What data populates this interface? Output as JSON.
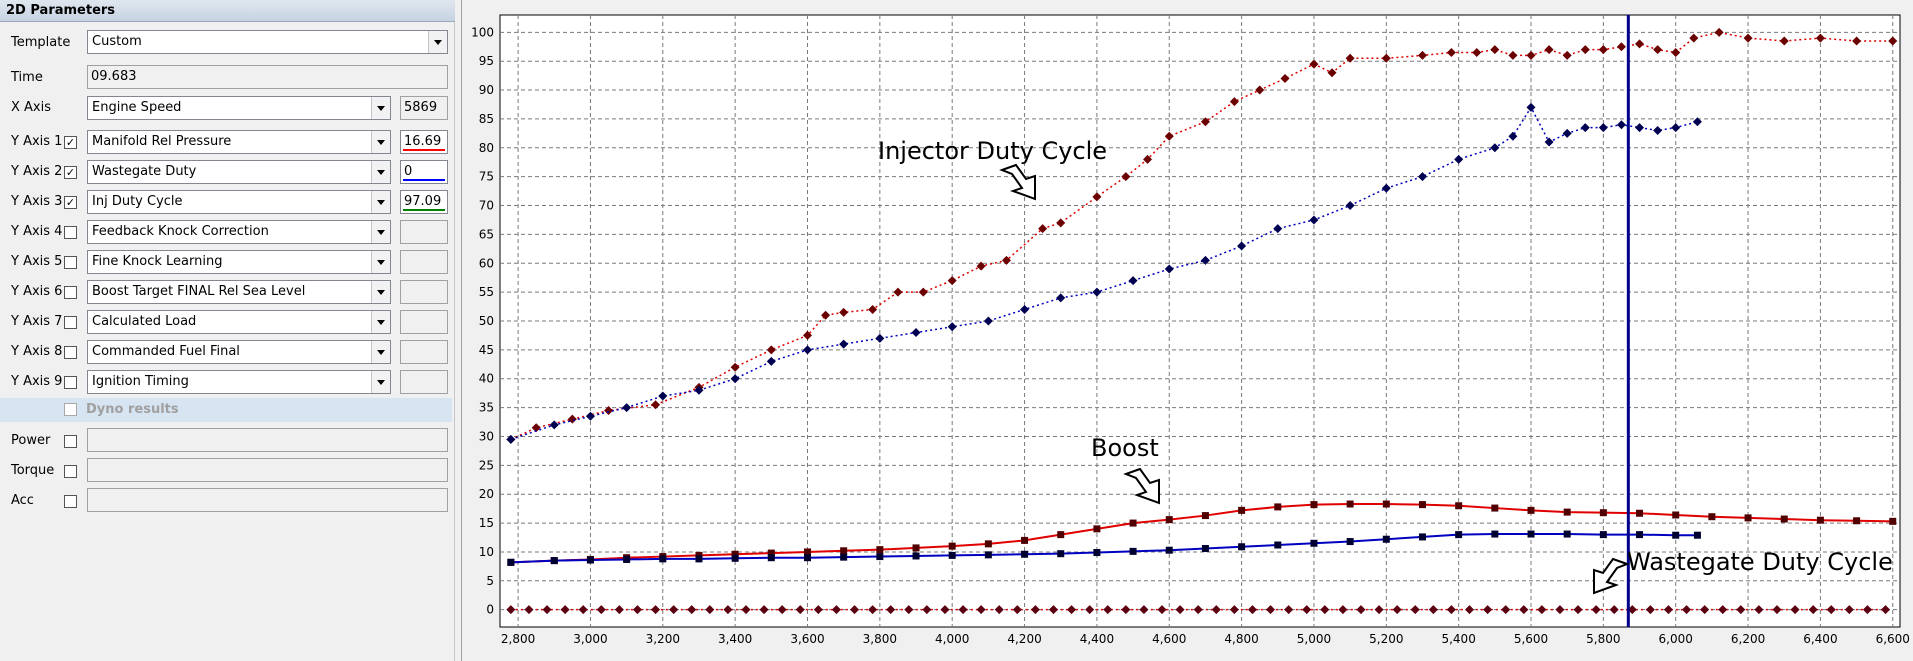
{
  "panel": {
    "title": "2D Parameters",
    "template": {
      "label": "Template",
      "value": "Custom"
    },
    "time": {
      "label": "Time",
      "value": "09.683"
    },
    "x_axis": {
      "label": "X Axis",
      "value": "Engine Speed",
      "reading": "5869"
    },
    "y_axes": [
      {
        "label": "Y Axis 1",
        "checked": true,
        "value": "Manifold Rel Pressure",
        "reading": "16.69",
        "color": "#ff0000"
      },
      {
        "label": "Y Axis 2",
        "checked": true,
        "value": "Wastegate Duty",
        "reading": "0",
        "color": "#0000ff"
      },
      {
        "label": "Y Axis 3",
        "checked": true,
        "value": "Inj Duty Cycle",
        "reading": "97.09",
        "color": "#008000"
      },
      {
        "label": "Y Axis 4",
        "checked": false,
        "value": "Feedback Knock Correction",
        "reading": ""
      },
      {
        "label": "Y Axis 5",
        "checked": false,
        "value": "Fine Knock Learning",
        "reading": ""
      },
      {
        "label": "Y Axis 6",
        "checked": false,
        "value": "Boost Target FINAL Rel Sea Level",
        "reading": ""
      },
      {
        "label": "Y Axis 7",
        "checked": false,
        "value": "Calculated Load",
        "reading": ""
      },
      {
        "label": "Y Axis 8",
        "checked": false,
        "value": "Commanded Fuel Final",
        "reading": ""
      },
      {
        "label": "Y Axis 9",
        "checked": false,
        "value": "Ignition Timing",
        "reading": ""
      }
    ],
    "dyno": {
      "label": "Dyno results",
      "checked": false
    },
    "power": {
      "label": "Power",
      "checked": false
    },
    "torque": {
      "label": "Torque",
      "checked": false
    },
    "acc": {
      "label": "Acc",
      "checked": false
    }
  },
  "chart_data": {
    "type": "line",
    "xlim": [
      2750,
      6620
    ],
    "ylim": [
      -3,
      103
    ],
    "x_ticks": [
      "2,800",
      "3,000",
      "3,200",
      "3,400",
      "3,600",
      "3,800",
      "4,000",
      "4,200",
      "4,400",
      "4,600",
      "4,800",
      "5,000",
      "5,200",
      "5,400",
      "5,600",
      "5,800",
      "6,000",
      "6,200",
      "6,400",
      "6,600"
    ],
    "y_ticks": [
      "0",
      "5",
      "10",
      "15",
      "20",
      "25",
      "30",
      "35",
      "40",
      "45",
      "50",
      "55",
      "60",
      "65",
      "70",
      "75",
      "80",
      "85",
      "90",
      "95",
      "100"
    ],
    "grid": true,
    "cursor_x": 5869,
    "annotations": [
      "Injector Duty Cycle",
      "Boost",
      "Wastegate Duty Cycle"
    ],
    "series": [
      {
        "color": "#e00000",
        "marker_color": "#6b0000",
        "style": "dotted",
        "marker": "diamond",
        "x": [
          2780,
          2850,
          2950,
          3050,
          3180,
          3300,
          3400,
          3500,
          3600,
          3650,
          3700,
          3780,
          3850,
          3920,
          4000,
          4080,
          4150,
          4250,
          4300,
          4400,
          4480,
          4540,
          4600,
          4700,
          4780,
          4850,
          4920,
          5000,
          5050,
          5100,
          5200,
          5300,
          5380,
          5450,
          5500,
          5550,
          5600,
          5650,
          5700,
          5750,
          5800,
          5850,
          5900,
          5950,
          6000,
          6050,
          6120,
          6200,
          6300,
          6400,
          6500,
          6600
        ],
        "y": [
          29.5,
          31.5,
          33,
          34.5,
          35.5,
          38.5,
          42,
          45,
          47.5,
          51,
          51.5,
          52,
          55,
          55,
          57,
          59.5,
          60.5,
          66,
          67,
          71.5,
          75,
          78,
          82,
          84.5,
          88,
          90,
          92,
          94.5,
          93,
          95.5,
          95.5,
          96,
          96.5,
          96.5,
          97,
          96,
          96,
          97,
          96,
          97,
          97,
          97.5,
          98,
          97,
          96.5,
          99,
          100,
          99,
          98.5,
          99,
          98.5,
          98.5
        ]
      },
      {
        "color": "#0000c0",
        "marker_color": "#000050",
        "style": "dotted",
        "marker": "diamond",
        "x": [
          2780,
          2900,
          3000,
          3100,
          3200,
          3300,
          3400,
          3500,
          3600,
          3700,
          3800,
          3900,
          4000,
          4100,
          4200,
          4300,
          4400,
          4500,
          4600,
          4700,
          4800,
          4900,
          5000,
          5100,
          5200,
          5300,
          5400,
          5500,
          5550,
          5600,
          5650,
          5700,
          5750,
          5800,
          5850,
          5900,
          5950,
          6000,
          6060
        ],
        "y": [
          29.5,
          32,
          33.5,
          35,
          37,
          38,
          40,
          43,
          45,
          46,
          47,
          48,
          49,
          50,
          52,
          54,
          55,
          57,
          59,
          60.5,
          63,
          66,
          67.5,
          70,
          73,
          75,
          78,
          80,
          82,
          87,
          81,
          82.5,
          83.5,
          83.5,
          84,
          83.5,
          83,
          83.5,
          84.5
        ]
      },
      {
        "color": "#e00000",
        "marker_color": "#500000",
        "style": "solid",
        "marker": "square",
        "x": [
          2780,
          2900,
          3000,
          3100,
          3200,
          3300,
          3400,
          3500,
          3600,
          3700,
          3800,
          3900,
          4000,
          4100,
          4200,
          4300,
          4400,
          4500,
          4600,
          4700,
          4800,
          4900,
          5000,
          5100,
          5200,
          5300,
          5400,
          5500,
          5600,
          5700,
          5800,
          5900,
          6000,
          6100,
          6200,
          6300,
          6400,
          6500,
          6600
        ],
        "y": [
          8.2,
          8.5,
          8.7,
          9,
          9.2,
          9.4,
          9.6,
          9.8,
          10,
          10.2,
          10.4,
          10.7,
          11,
          11.4,
          12,
          13,
          14,
          15,
          15.6,
          16.3,
          17.2,
          17.8,
          18.2,
          18.3,
          18.3,
          18.2,
          18,
          17.6,
          17.2,
          16.9,
          16.8,
          16.7,
          16.4,
          16.1,
          15.9,
          15.7,
          15.5,
          15.4,
          15.3
        ]
      },
      {
        "color": "#0000c0",
        "marker_color": "#000030",
        "style": "solid",
        "marker": "square",
        "x": [
          2780,
          2900,
          3000,
          3100,
          3200,
          3300,
          3400,
          3500,
          3600,
          3700,
          3800,
          3900,
          4000,
          4100,
          4200,
          4300,
          4400,
          4500,
          4600,
          4700,
          4800,
          4900,
          5000,
          5100,
          5200,
          5300,
          5400,
          5500,
          5600,
          5700,
          5800,
          5900,
          6000,
          6060
        ],
        "y": [
          8.2,
          8.5,
          8.6,
          8.7,
          8.8,
          8.8,
          8.9,
          9,
          9,
          9.1,
          9.2,
          9.3,
          9.4,
          9.5,
          9.6,
          9.7,
          9.9,
          10.1,
          10.3,
          10.6,
          10.9,
          11.2,
          11.5,
          11.8,
          12.2,
          12.6,
          13,
          13.1,
          13.1,
          13.1,
          13,
          13,
          12.9,
          12.9
        ]
      },
      {
        "color": "#e00000",
        "marker_color": "#5a0010",
        "style": "dotted",
        "marker": "diamond",
        "x": [
          2780,
          2830,
          2880,
          2930,
          2980,
          3030,
          3080,
          3130,
          3180,
          3230,
          3280,
          3330,
          3380,
          3430,
          3480,
          3530,
          3580,
          3630,
          3680,
          3730,
          3780,
          3830,
          3880,
          3930,
          3980,
          4030,
          4080,
          4130,
          4180,
          4230,
          4280,
          4330,
          4380,
          4430,
          4480,
          4530,
          4580,
          4630,
          4680,
          4730,
          4780,
          4830,
          4880,
          4930,
          4980,
          5030,
          5080,
          5130,
          5180,
          5230,
          5280,
          5330,
          5380,
          5430,
          5480,
          5530,
          5580,
          5630,
          5680,
          5730,
          5780,
          5830,
          5880,
          5930,
          5980,
          6030,
          6080,
          6130,
          6180,
          6230,
          6280,
          6330,
          6380,
          6430,
          6480,
          6530,
          6580
        ],
        "y": [
          0,
          0,
          0,
          0,
          0,
          0,
          0,
          0,
          0,
          0,
          0,
          0,
          0,
          0,
          0,
          0,
          0,
          0,
          0,
          0,
          0,
          0,
          0,
          0,
          0,
          0,
          0,
          0,
          0,
          0,
          0,
          0,
          0,
          0,
          0,
          0,
          0,
          0,
          0,
          0,
          0,
          0,
          0,
          0,
          0,
          0,
          0,
          0,
          0,
          0,
          0,
          0,
          0,
          0,
          0,
          0,
          0,
          0,
          0,
          0,
          0,
          0,
          0,
          0,
          0,
          0,
          0,
          0,
          0,
          0,
          0,
          0,
          0,
          0,
          0,
          0,
          0
        ]
      }
    ]
  }
}
